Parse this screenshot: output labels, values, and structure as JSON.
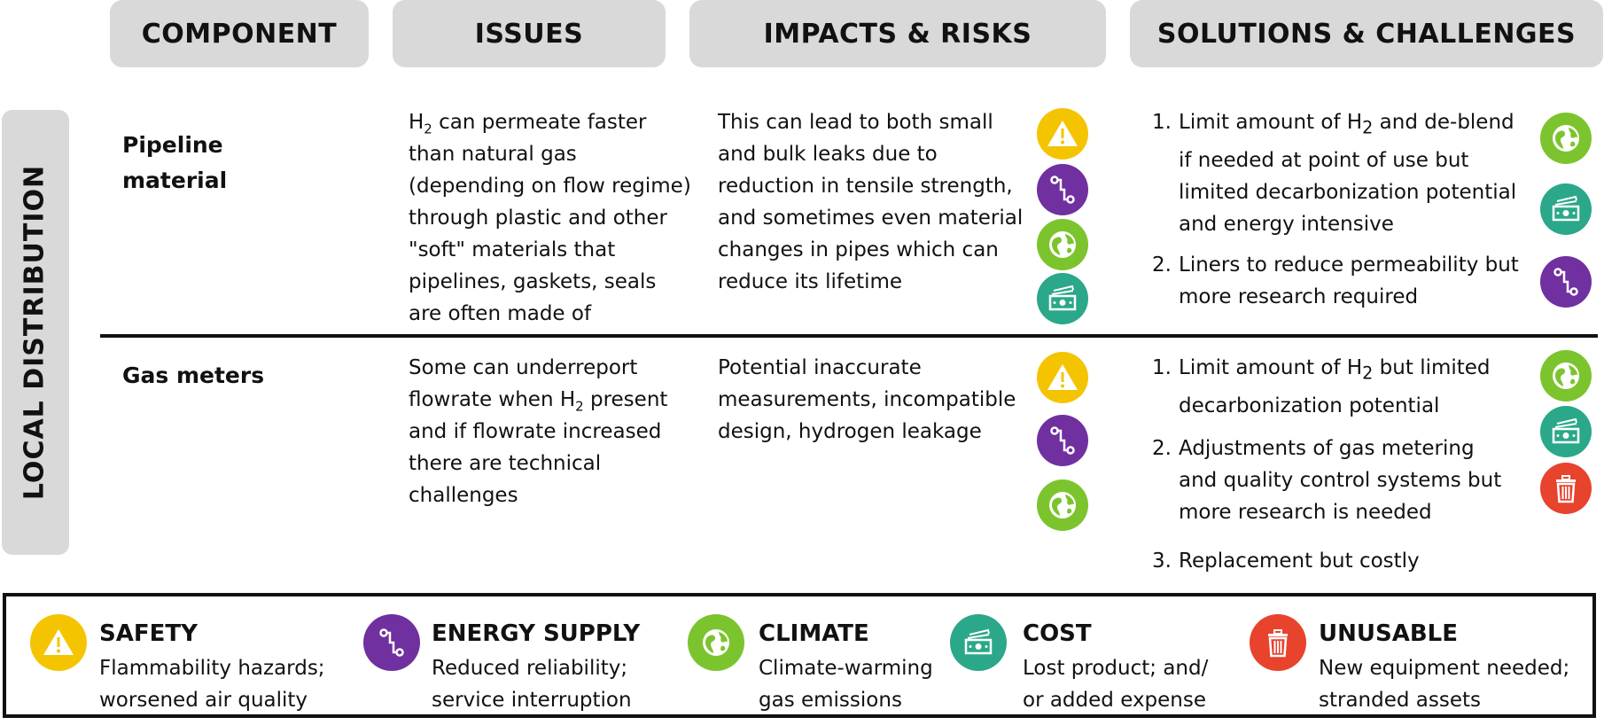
{
  "colors": {
    "safety": "#f5c400",
    "energy_supply": "#7030a0",
    "climate": "#7cc42d",
    "cost": "#2aa889",
    "unusable": "#e8432c",
    "header_bg": "#d9d9d9"
  },
  "headers": {
    "component": "COMPONENT",
    "issues": "ISSUES",
    "impacts": "IMPACTS & RISKS",
    "solutions": "SOLUTIONS & CHALLENGES"
  },
  "side_label": "LOCAL DISTRIBUTION",
  "rows": [
    {
      "component_line1": "Pipeline",
      "component_line2": "material",
      "issues": {
        "pre": "H",
        "sub": "2",
        "post": " can permeate faster than natural gas (depending on flow regime) through plastic and other \"soft\" materials that pipelines, gaskets, seals are often made of"
      },
      "impacts": "This can lead to both small and bulk leaks due to reduction in tensile strength, and sometimes even material changes in pipes which can reduce its lifetime",
      "impact_icons": [
        "warning-icon",
        "energy-supply-icon",
        "globe-icon",
        "money-icon"
      ],
      "solutions": [
        {
          "num": "1.",
          "pre": "Limit amount of H",
          "sub": "2",
          "post": " and de-blend if needed at point of use but limited decarbonization potential and energy intensive"
        },
        {
          "num": "2.",
          "pre": "Liners to reduce permeability but more research required",
          "sub": "",
          "post": ""
        }
      ],
      "solution_icons": [
        "globe-icon",
        "money-icon",
        "energy-supply-icon"
      ]
    },
    {
      "component_line1": "Gas meters",
      "component_line2": "",
      "issues": {
        "pre": "Some can underreport flowrate when H",
        "sub": "2",
        "post": " present and if flowrate increased there are technical challenges"
      },
      "impacts": "Potential inaccurate measurements, incompatible design, hydrogen leakage",
      "impact_icons": [
        "warning-icon",
        "energy-supply-icon",
        "globe-icon"
      ],
      "solutions": [
        {
          "num": "1.",
          "pre": "Limit amount of H",
          "sub": "2",
          "post": " but limited decarbonization potential"
        },
        {
          "num": "2.",
          "pre": "Adjustments of gas metering and quality control systems but more research is needed",
          "sub": "",
          "post": ""
        },
        {
          "num": "3.",
          "pre": " Replacement but costly",
          "sub": "",
          "post": ""
        }
      ],
      "solution_icons": [
        "globe-icon",
        "money-icon",
        "trash-icon"
      ]
    }
  ],
  "legend": [
    {
      "icon": "warning-icon",
      "title": "SAFETY",
      "line1": "Flammability hazards;",
      "line2": "worsened air quality"
    },
    {
      "icon": "energy-supply-icon",
      "title": "ENERGY SUPPLY",
      "line1": "Reduced reliability;",
      "line2": "service interruption"
    },
    {
      "icon": "globe-icon",
      "title": "CLIMATE",
      "line1": "Climate-warming",
      "line2": "gas emissions"
    },
    {
      "icon": "money-icon",
      "title": "COST",
      "line1": "Lost product; and/",
      "line2": "or added expense"
    },
    {
      "icon": "trash-icon",
      "title": "UNUSABLE",
      "line1": "New equipment needed;",
      "line2": "stranded assets"
    }
  ]
}
